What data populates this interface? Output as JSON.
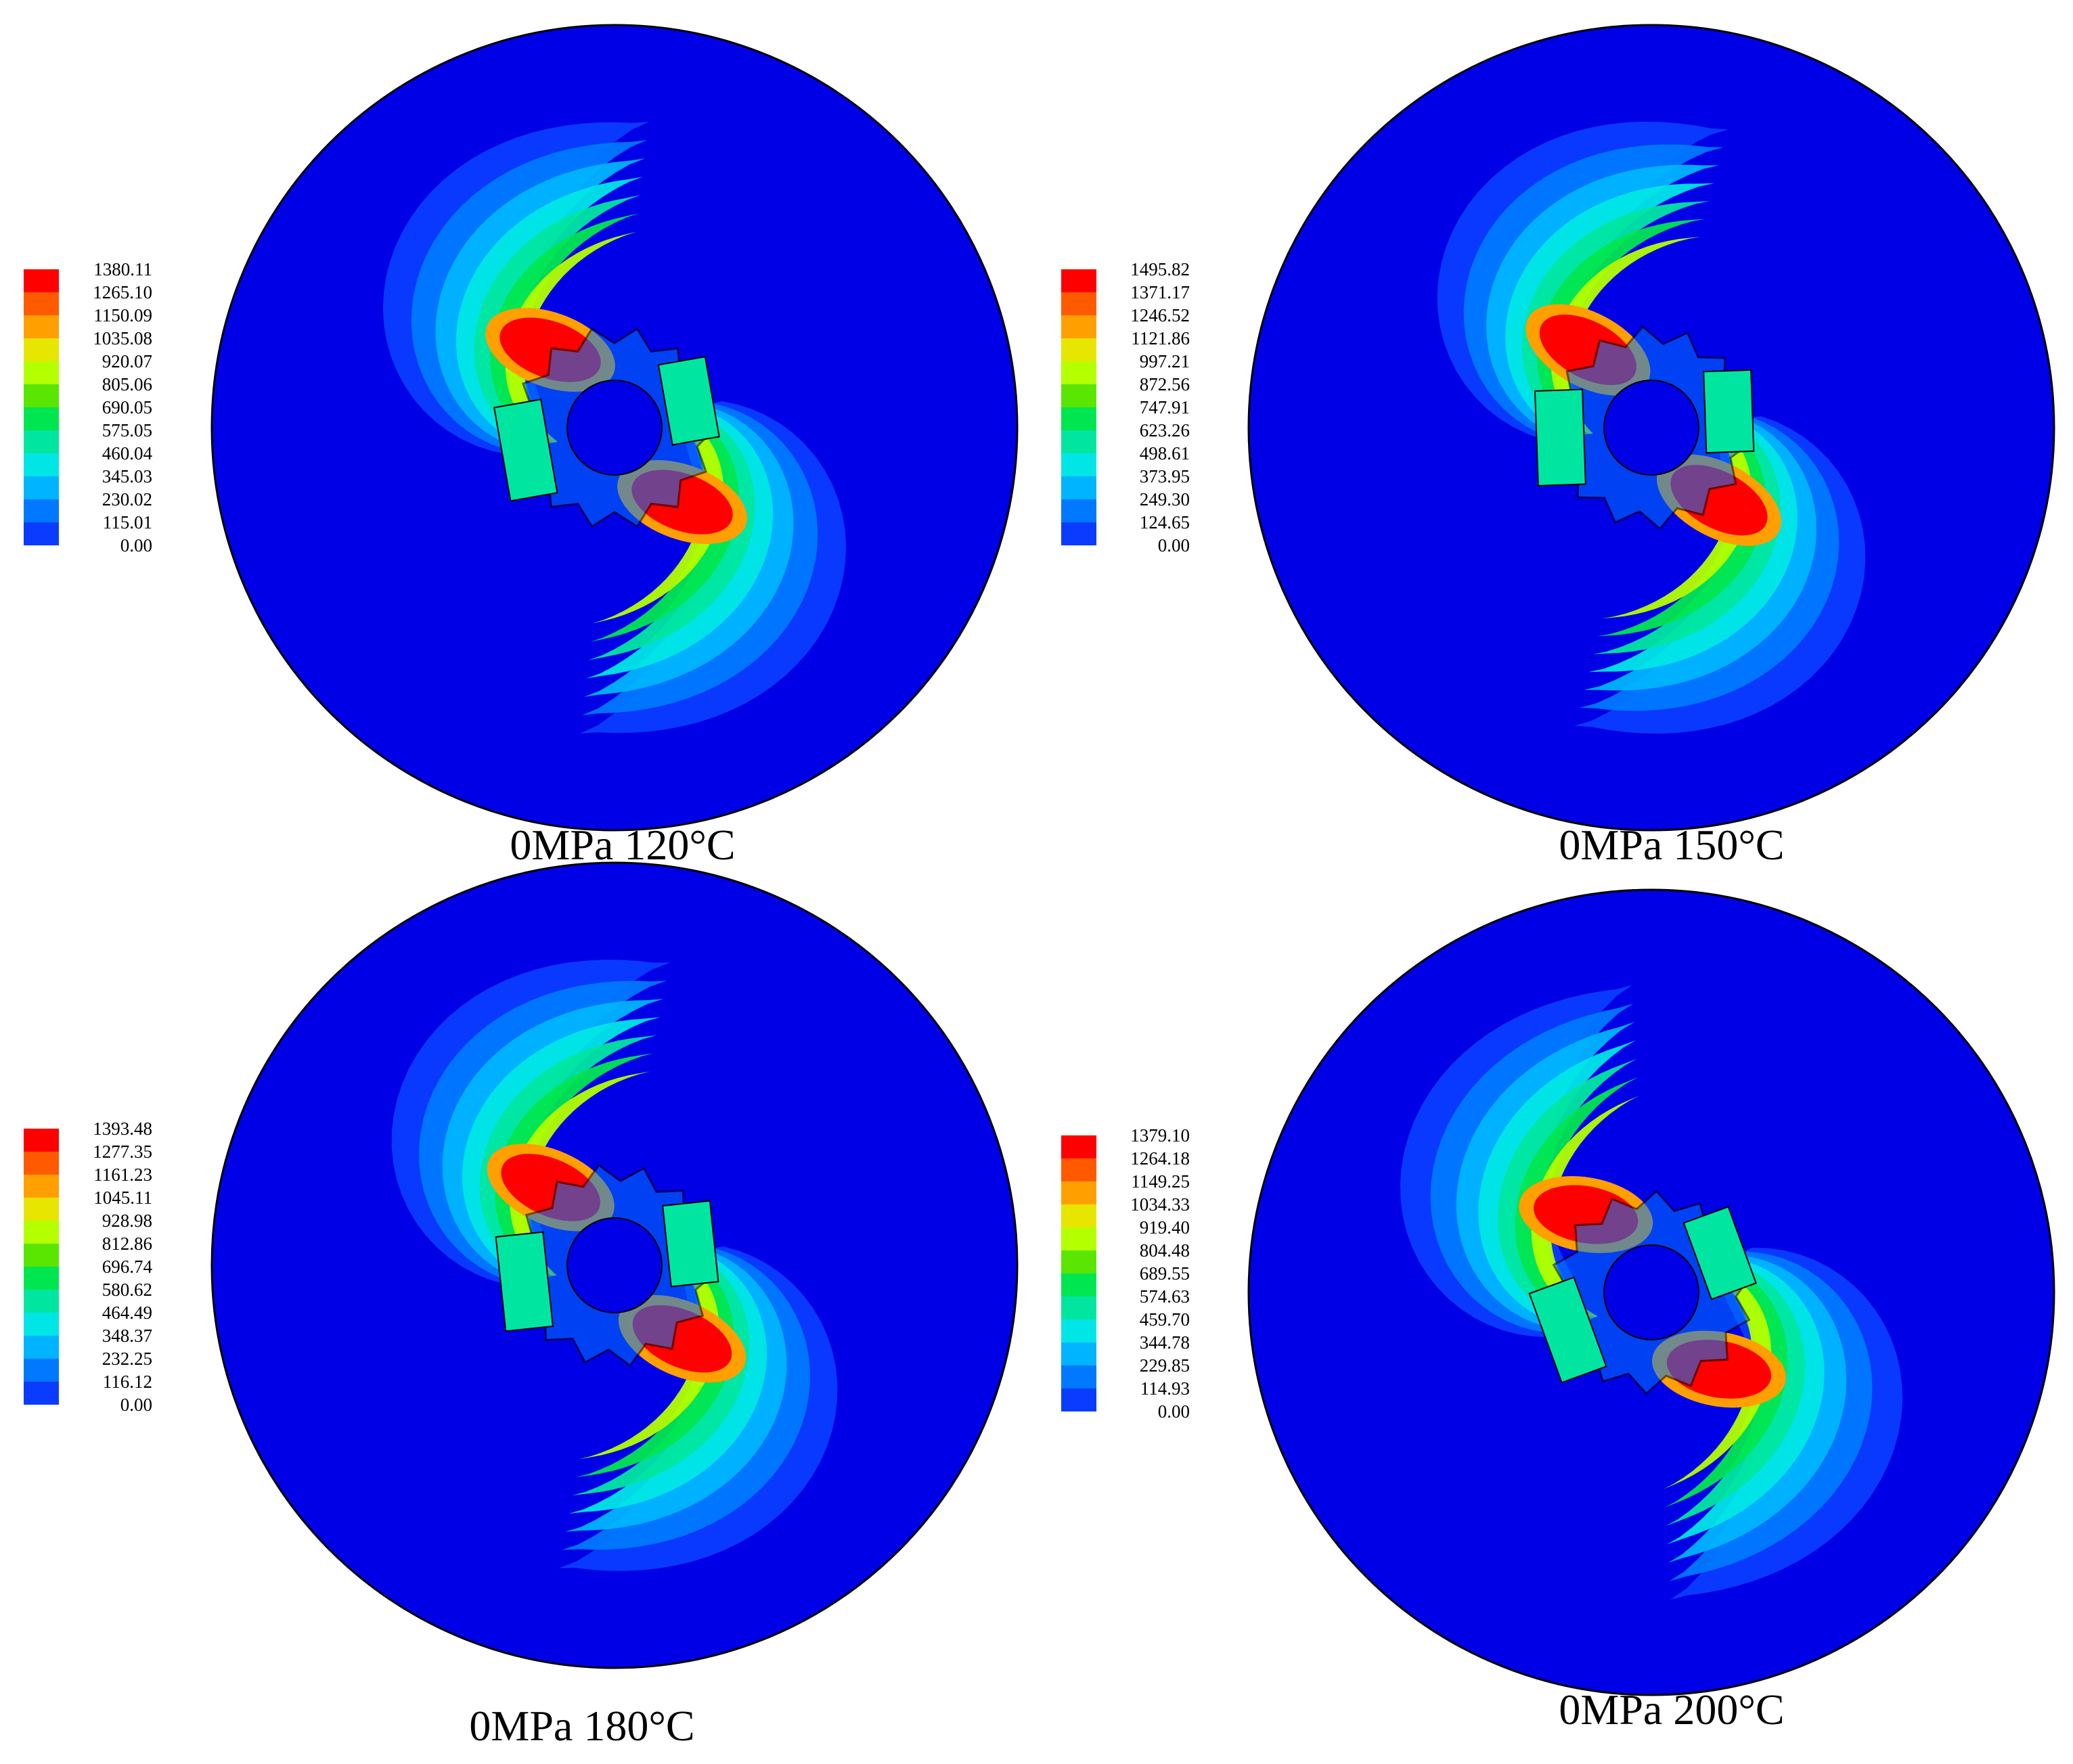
{
  "figure": {
    "panels": [
      {
        "caption": "0MPa 120°C",
        "legend": [
          "1380.11",
          "1265.10",
          "1150.09",
          "1035.08",
          "920.07",
          "805.06",
          "690.05",
          "575.05",
          "460.04",
          "345.03",
          "230.02",
          "115.01",
          "0.00"
        ]
      },
      {
        "caption": "0MPa 150°C",
        "legend": [
          "1495.82",
          "1371.17",
          "1246.52",
          "1121.86",
          "997.21",
          "872.56",
          "747.91",
          "623.26",
          "498.61",
          "373.95",
          "249.30",
          "124.65",
          "0.00"
        ]
      },
      {
        "caption": "0MPa 180°C",
        "legend": [
          "1393.48",
          "1277.35",
          "1161.23",
          "1045.11",
          "928.98",
          "812.86",
          "696.74",
          "580.62",
          "464.49",
          "348.37",
          "232.25",
          "116.12",
          "0.00"
        ]
      },
      {
        "caption": "0MPa 200°C",
        "legend": [
          "1379.10",
          "1264.18",
          "1149.25",
          "1034.33",
          "919.40",
          "804.48",
          "689.55",
          "574.63",
          "459.70",
          "344.78",
          "229.85",
          "114.93",
          "0.00"
        ]
      }
    ],
    "colormap": [
      "#ff0000",
      "#ff5a00",
      "#ffa000",
      "#e6e600",
      "#b4ff00",
      "#5ae600",
      "#00e650",
      "#00e6a0",
      "#00e6e6",
      "#00b4ff",
      "#0078ff",
      "#0a3cff"
    ],
    "background_color": "#0000e6"
  }
}
